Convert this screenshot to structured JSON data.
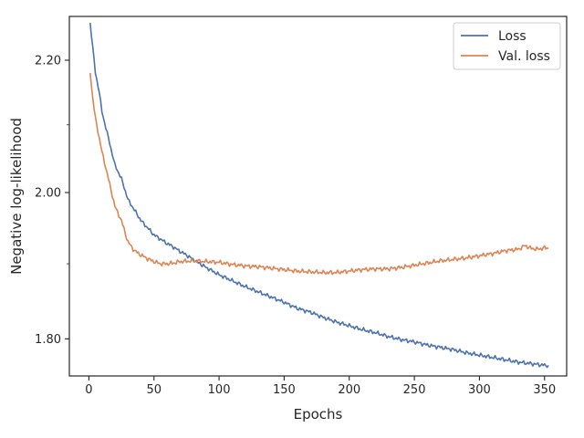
{
  "chart_data": {
    "type": "line",
    "xlabel": "Epochs",
    "ylabel": "Negative log-likelihood",
    "y_scale": "log",
    "xlim": [
      -15,
      367
    ],
    "ylim": [
      1.7525,
      2.2705
    ],
    "xticks": [
      0,
      50,
      100,
      150,
      200,
      250,
      300,
      350
    ],
    "xtick_labels": [
      "0",
      "50",
      "100",
      "150",
      "200",
      "250",
      "300",
      "350"
    ],
    "yticks": [
      1.8,
      2.0,
      2.2
    ],
    "ytick_labels": [
      "1.80",
      "2.00",
      "2.20"
    ],
    "grid": false,
    "legend_position": "top-right",
    "series": [
      {
        "name": "Loss",
        "color": "#4c72b0",
        "x": [
          1,
          3,
          5,
          8,
          10,
          15,
          20,
          25,
          30,
          35,
          40,
          45,
          50,
          55,
          60,
          65,
          70,
          75,
          80,
          90,
          100,
          110,
          120,
          130,
          140,
          150,
          160,
          170,
          180,
          190,
          200,
          210,
          220,
          230,
          240,
          250,
          260,
          270,
          280,
          290,
          300,
          310,
          320,
          330,
          340,
          350,
          353
        ],
        "y": [
          2.26,
          2.22,
          2.18,
          2.15,
          2.12,
          2.08,
          2.04,
          2.02,
          1.99,
          1.975,
          1.96,
          1.95,
          1.94,
          1.934,
          1.928,
          1.923,
          1.917,
          1.912,
          1.906,
          1.895,
          1.885,
          1.877,
          1.869,
          1.862,
          1.855,
          1.848,
          1.84,
          1.835,
          1.828,
          1.822,
          1.817,
          1.812,
          1.808,
          1.803,
          1.799,
          1.796,
          1.792,
          1.789,
          1.786,
          1.782,
          1.779,
          1.776,
          1.773,
          1.77,
          1.768,
          1.766,
          1.766
        ]
      },
      {
        "name": "Val. loss",
        "color": "#dd8452",
        "x": [
          1,
          3,
          5,
          8,
          10,
          15,
          20,
          25,
          30,
          35,
          40,
          45,
          50,
          55,
          60,
          65,
          70,
          80,
          90,
          100,
          110,
          120,
          130,
          140,
          150,
          160,
          170,
          180,
          190,
          200,
          210,
          220,
          230,
          240,
          250,
          260,
          270,
          280,
          290,
          300,
          310,
          320,
          330,
          335,
          340,
          345,
          350,
          353
        ],
        "y": [
          2.18,
          2.14,
          2.11,
          2.08,
          2.06,
          2.02,
          1.98,
          1.96,
          1.93,
          1.918,
          1.912,
          1.907,
          1.903,
          1.9,
          1.9,
          1.901,
          1.903,
          1.904,
          1.903,
          1.902,
          1.899,
          1.897,
          1.896,
          1.894,
          1.892,
          1.89,
          1.889,
          1.888,
          1.888,
          1.89,
          1.892,
          1.893,
          1.893,
          1.895,
          1.898,
          1.901,
          1.904,
          1.906,
          1.908,
          1.911,
          1.914,
          1.918,
          1.92,
          1.925,
          1.921,
          1.92,
          1.922,
          1.921
        ]
      }
    ]
  }
}
